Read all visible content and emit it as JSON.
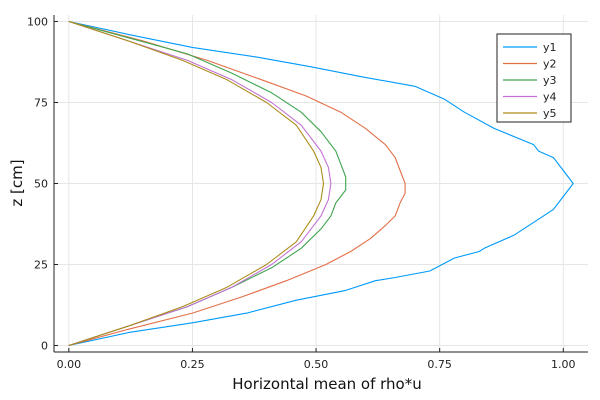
{
  "chart_data": {
    "type": "line",
    "xlabel": "Horizontal mean of rho*u",
    "ylabel": "z [cm]",
    "xlim": [
      -0.03,
      1.05
    ],
    "ylim": [
      -2,
      102
    ],
    "xticks": [
      0.0,
      0.25,
      0.5,
      0.75,
      1.0
    ],
    "xtick_labels": [
      "0.00",
      "0.25",
      "0.50",
      "0.75",
      "1.00"
    ],
    "yticks": [
      0,
      25,
      50,
      75,
      100
    ],
    "ytick_labels": [
      "0",
      "25",
      "50",
      "75",
      "100"
    ],
    "grid": true,
    "legend_position": "top-right",
    "series": [
      {
        "name": "y1",
        "color": "#009AFA",
        "x": [
          0.0,
          0.12,
          0.25,
          0.36,
          0.46,
          0.56,
          0.62,
          0.66,
          0.73,
          0.78,
          0.83,
          0.84,
          0.9,
          0.94,
          0.98,
          1.0,
          1.02,
          1.0,
          0.98,
          0.95,
          0.94,
          0.86,
          0.8,
          0.76,
          0.7,
          0.59,
          0.49,
          0.38,
          0.25,
          0.12,
          0.0
        ],
        "z": [
          0,
          4,
          7,
          10,
          14,
          17,
          20,
          21,
          23,
          27,
          29,
          30,
          34,
          38,
          42,
          46,
          50,
          54,
          58,
          60,
          62,
          67,
          72,
          76,
          80,
          83,
          86,
          89,
          92,
          96,
          100
        ]
      },
      {
        "name": "y2",
        "color": "#E36F47",
        "x": [
          0.0,
          0.12,
          0.25,
          0.35,
          0.44,
          0.52,
          0.57,
          0.61,
          0.64,
          0.66,
          0.67,
          0.68,
          0.68,
          0.67,
          0.66,
          0.64,
          0.6,
          0.55,
          0.48,
          0.39,
          0.28,
          0.15,
          0.0
        ],
        "z": [
          0,
          5,
          10,
          15,
          20,
          25,
          29,
          33,
          37,
          40,
          44,
          47,
          50,
          54,
          58,
          62,
          67,
          72,
          77,
          82,
          88,
          94,
          100
        ]
      },
      {
        "name": "y3",
        "color": "#3EA44E",
        "x": [
          0.0,
          0.12,
          0.24,
          0.33,
          0.41,
          0.47,
          0.51,
          0.53,
          0.54,
          0.56,
          0.56,
          0.55,
          0.54,
          0.51,
          0.47,
          0.41,
          0.33,
          0.24,
          0.12,
          0.0
        ],
        "z": [
          0,
          6,
          12,
          18,
          24,
          30,
          36,
          40,
          44,
          48,
          52,
          56,
          60,
          66,
          72,
          78,
          84,
          90,
          95,
          100
        ]
      },
      {
        "name": "y4",
        "color": "#C271D2",
        "x": [
          0.0,
          0.12,
          0.24,
          0.33,
          0.41,
          0.47,
          0.51,
          0.525,
          0.53,
          0.525,
          0.51,
          0.47,
          0.41,
          0.33,
          0.24,
          0.12,
          0.0
        ],
        "z": [
          0,
          6,
          12,
          18,
          25,
          32,
          40,
          45,
          50,
          55,
          60,
          68,
          75,
          82,
          88,
          94,
          100
        ]
      },
      {
        "name": "y5",
        "color": "#AC8D18",
        "x": [
          0.0,
          0.12,
          0.23,
          0.32,
          0.4,
          0.46,
          0.495,
          0.51,
          0.515,
          0.51,
          0.495,
          0.46,
          0.4,
          0.32,
          0.23,
          0.12,
          0.0
        ],
        "z": [
          0,
          6,
          12,
          18,
          25,
          32,
          40,
          45,
          50,
          55,
          60,
          68,
          75,
          82,
          88,
          94,
          100
        ]
      }
    ]
  }
}
